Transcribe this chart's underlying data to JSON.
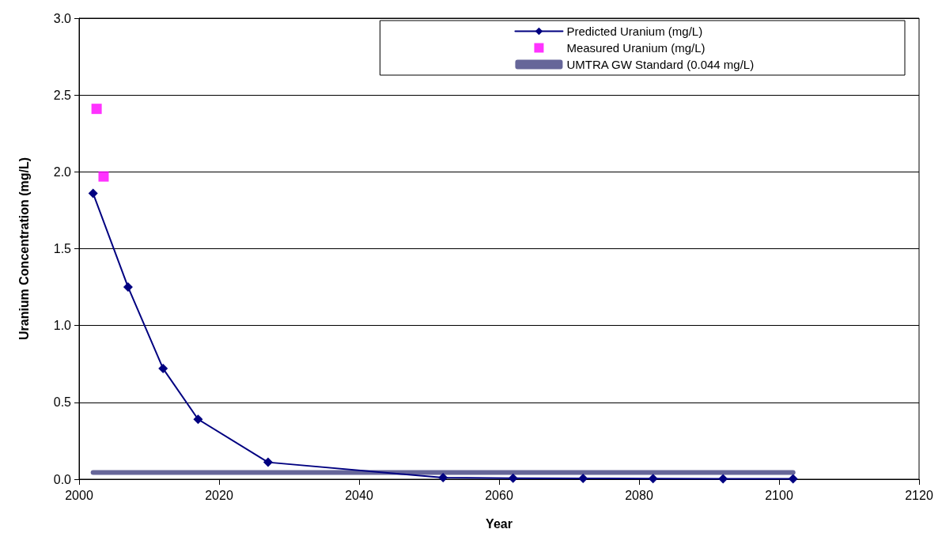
{
  "chart_data": {
    "type": "line",
    "xlabel": "Year",
    "ylabel": "Uranium Concentration (mg/L)",
    "xlim": [
      2000,
      2120
    ],
    "xticks": [
      2000,
      2020,
      2040,
      2060,
      2080,
      2100,
      2120
    ],
    "ylim": [
      0,
      3
    ],
    "yticks": [
      {
        "value": 0,
        "label": "0.0"
      },
      {
        "value": 0.5,
        "label": "0.5"
      },
      {
        "value": 1,
        "label": "1.0"
      },
      {
        "value": 1.5,
        "label": "1.5"
      },
      {
        "value": 2,
        "label": "2.0"
      },
      {
        "value": 2.5,
        "label": "2.5"
      },
      {
        "value": 3,
        "label": "3.0"
      }
    ],
    "grid": "y",
    "legend": "top right",
    "series": [
      {
        "name": "Predicted Uranium (mg/L)",
        "marker": "diamond",
        "color": "#000080",
        "x": [
          2002,
          2007,
          2012,
          2017,
          2027,
          2052,
          2062,
          2072,
          2082,
          2092,
          2102
        ],
        "values": [
          1.86,
          1.25,
          0.72,
          0.39,
          0.11,
          0.01,
          0.007,
          0.005,
          0.004,
          0.003,
          0.002
        ]
      },
      {
        "name": "Measured Uranium (mg/L)",
        "type": "scatter",
        "marker": "square",
        "color": "#ff00ff",
        "x": [
          2002.5,
          2003.5
        ],
        "values": [
          2.41,
          1.97
        ]
      },
      {
        "name": "UMTRA GW Standard (0.044 mg/L)",
        "marker": "none",
        "color": "#666699",
        "x": [
          2002,
          2102
        ],
        "values": [
          0.044,
          0.044
        ]
      }
    ]
  }
}
